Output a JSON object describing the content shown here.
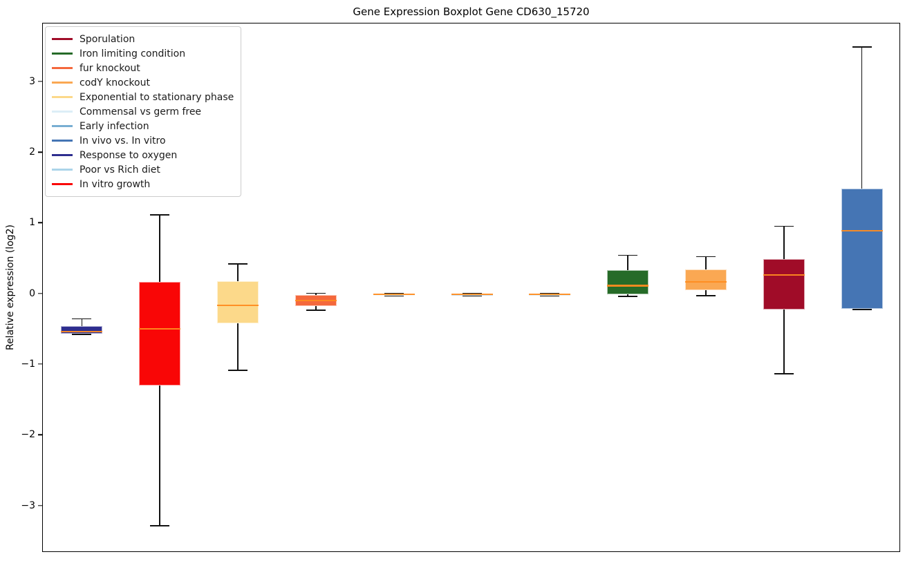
{
  "title": "Gene Expression Boxplot Gene CD630_15720",
  "axes": {
    "ylabel": "Relative expression (log2)",
    "xlabel": "",
    "y_ticks": [
      3,
      2,
      1,
      0,
      -1,
      -2,
      -3
    ],
    "ylim": [
      -3.66,
      3.83
    ],
    "x_tick_labels": []
  },
  "legend": {
    "position": "upper-left",
    "items": [
      {
        "label": "Sporulation",
        "color": "#a00c28"
      },
      {
        "label": "Iron limiting condition",
        "color": "#266b28"
      },
      {
        "label": "fur knockout",
        "color": "#f4683c"
      },
      {
        "label": "codY knockout",
        "color": "#faa853"
      },
      {
        "label": "Exponential to stationary phase",
        "color": "#fcd98a"
      },
      {
        "label": "Commensal vs germ free",
        "color": "#dceef7"
      },
      {
        "label": "Early infection",
        "color": "#78aed2"
      },
      {
        "label": "In vivo vs. In vitro",
        "color": "#4575b4"
      },
      {
        "label": "Response to oxygen",
        "color": "#2e2e8f"
      },
      {
        "label": "Poor vs Rich diet",
        "color": "#abd4e9"
      },
      {
        "label": "In vitro growth",
        "color": "#f90606"
      }
    ]
  },
  "chart_data": {
    "type": "boxplot",
    "title": "Gene Expression Boxplot Gene CD630_15720",
    "ylabel": "Relative expression (log2)",
    "ylim": [
      -3.66,
      3.83
    ],
    "grid": false,
    "median_color": "#ff8c20",
    "whisker_color": "#111111",
    "series": [
      {
        "condition": "Response to oxygen",
        "color": "#2e2e8f",
        "whisker_low": -0.57,
        "q1": -0.56,
        "median": -0.53,
        "q3": -0.45,
        "whisker_high": -0.35
      },
      {
        "condition": "In vitro growth",
        "color": "#f90606",
        "whisker_low": -3.28,
        "q1": -1.29,
        "median": -0.49,
        "q3": 0.17,
        "whisker_high": 1.12
      },
      {
        "condition": "Exponential to stationary phase",
        "color": "#fcd98a",
        "whisker_low": -1.08,
        "q1": -0.41,
        "median": -0.16,
        "q3": 0.18,
        "whisker_high": 0.43
      },
      {
        "condition": "fur knockout",
        "color": "#f4683c",
        "whisker_low": -0.23,
        "q1": -0.17,
        "median": -0.09,
        "q3": -0.01,
        "whisker_high": 0.01
      },
      {
        "condition": "Commensal vs germ free",
        "color": "#dceef7",
        "whisker_low": -0.02,
        "q1": -0.01,
        "median": -0.005,
        "q3": 0.0,
        "whisker_high": 0.01
      },
      {
        "condition": "Early infection",
        "color": "#78aed2",
        "whisker_low": -0.02,
        "q1": -0.01,
        "median": -0.005,
        "q3": 0.0,
        "whisker_high": 0.01
      },
      {
        "condition": "Poor vs Rich diet",
        "color": "#abd4e9",
        "whisker_low": -0.02,
        "q1": -0.01,
        "median": -0.005,
        "q3": 0.0,
        "whisker_high": 0.01
      },
      {
        "condition": "Iron limiting condition",
        "color": "#266b28",
        "whisker_low": -0.03,
        "q1": 0.0,
        "median": 0.12,
        "q3": 0.34,
        "whisker_high": 0.55
      },
      {
        "condition": "codY knockout",
        "color": "#faa853",
        "whisker_low": -0.02,
        "q1": 0.06,
        "median": 0.17,
        "q3": 0.35,
        "whisker_high": 0.53
      },
      {
        "condition": "Sporulation",
        "color": "#a00c28",
        "whisker_low": -1.13,
        "q1": -0.22,
        "median": 0.27,
        "q3": 0.5,
        "whisker_high": 0.96
      },
      {
        "condition": "In vivo vs. In vitro",
        "color": "#4575b4",
        "whisker_low": -0.22,
        "q1": -0.21,
        "median": 0.9,
        "q3": 1.49,
        "whisker_high": 3.5
      }
    ]
  }
}
